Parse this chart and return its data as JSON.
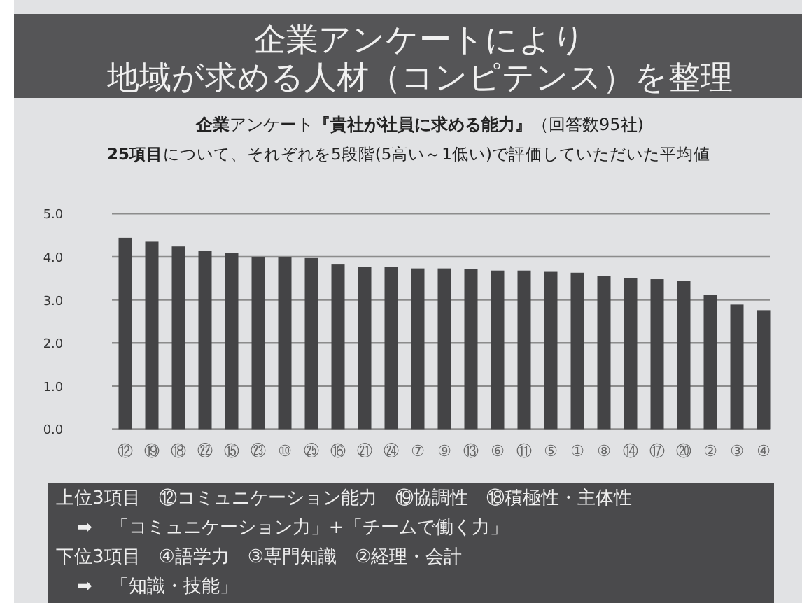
{
  "chart_data": {
    "type": "bar",
    "title": "企業アンケートにより",
    "subtitle": "地域が求める人材（コンピテンス）を整理",
    "categories": [
      "⑫",
      "⑲",
      "⑱",
      "㉒",
      "⑮",
      "㉓",
      "⑩",
      "㉕",
      "⑯",
      "㉑",
      "㉔",
      "⑦",
      "⑨",
      "⑬",
      "⑥",
      "⑪",
      "⑤",
      "①",
      "⑧",
      "⑭",
      "⑰",
      "⑳",
      "②",
      "③",
      "④"
    ],
    "values": [
      4.44,
      4.35,
      4.24,
      4.13,
      4.09,
      4.0,
      4.0,
      3.97,
      3.82,
      3.76,
      3.76,
      3.73,
      3.73,
      3.71,
      3.68,
      3.68,
      3.65,
      3.63,
      3.55,
      3.51,
      3.48,
      3.44,
      3.11,
      2.89,
      2.76
    ],
    "color": "#444446",
    "ylim": [
      0,
      5
    ],
    "yticks": [
      {
        "value": 0,
        "label": "0.0"
      },
      {
        "value": 1,
        "label": "1.0"
      },
      {
        "value": 2,
        "label": "2.0"
      },
      {
        "value": 3,
        "label": "3.0"
      },
      {
        "value": 4,
        "label": "4.0"
      },
      {
        "value": 5,
        "label": "5.0"
      }
    ],
    "grid": "y",
    "annotations": [
      "**企業**アンケート**『貴社が社員に求める能力』**（回答数95社)",
      "**25項目**について、それぞれを5段階(5高い～1低い)で評価していただいた平均値",
      "上位3項目　⑫コミュニケーション能力　⑲協調性　⑱積極性・主体性",
      "➡　「コミュニケーション力」+「チームで働く力」",
      "下位3項目　④語学力　③専門知識　②経理・会計",
      "➡　「知識・技能」"
    ]
  }
}
